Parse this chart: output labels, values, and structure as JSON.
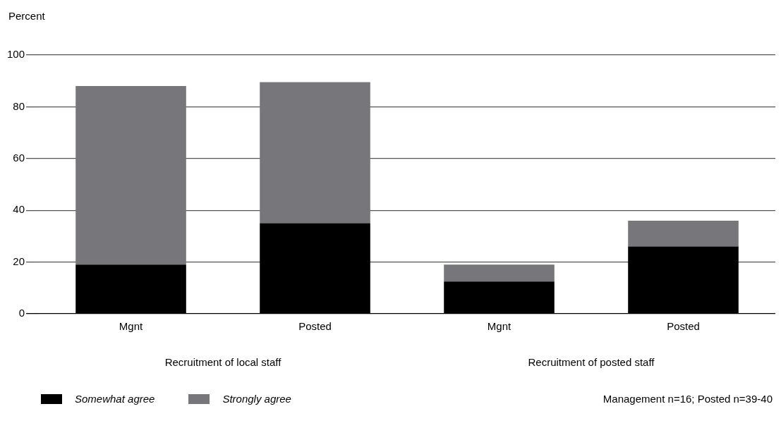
{
  "chart_data": {
    "type": "bar",
    "stacked": true,
    "ylabel": "Percent",
    "categories": [
      "Mgnt",
      "Posted",
      "Mgnt",
      "Posted"
    ],
    "series": [
      {
        "name": "Somewhat agree",
        "color": "#000000",
        "values": [
          19,
          35,
          12.5,
          26
        ]
      },
      {
        "name": "Strongly agree",
        "color": "#77777b",
        "values": [
          69,
          54.5,
          6.5,
          10
        ]
      }
    ],
    "ylim": [
      0,
      100
    ],
    "yticks": [
      0,
      20,
      40,
      60,
      80,
      100
    ],
    "grid": "y",
    "legend": "bottom left",
    "annotations": [
      "Recruitment of local staff",
      "Recruitment of posted staff",
      "Management n=16;  Posted n=39-40"
    ]
  }
}
